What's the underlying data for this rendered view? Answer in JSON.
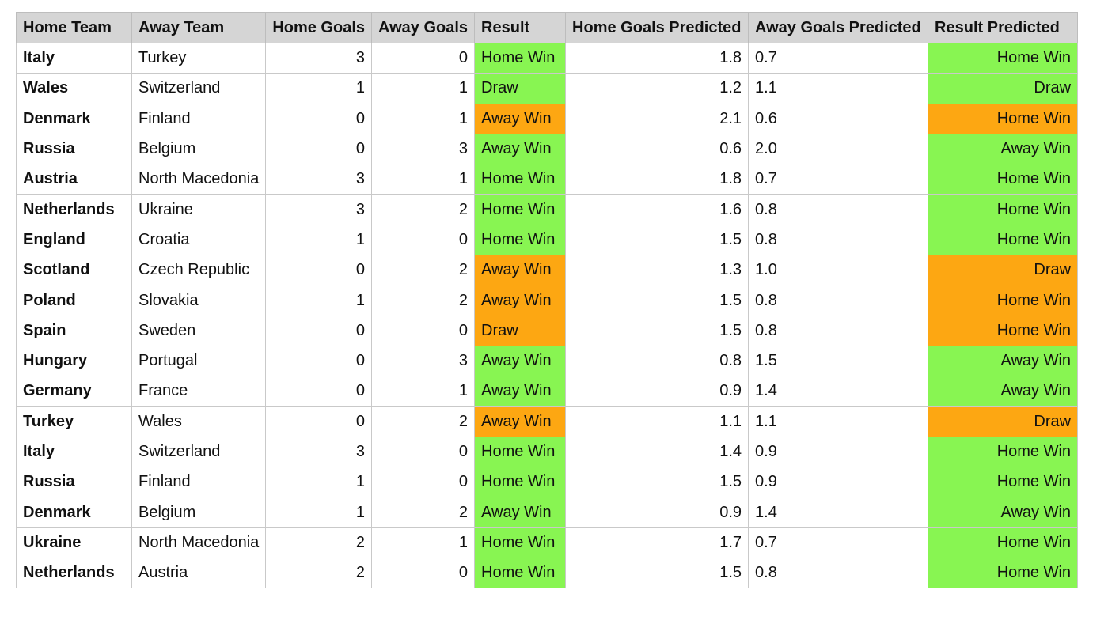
{
  "table": {
    "headers": [
      "Home Team",
      "Away Team",
      "Home Goals",
      "Away Goals",
      "Result",
      "Home Goals Predicted",
      "Away Goals Predicted",
      "Result Predicted"
    ],
    "colors": {
      "correct": "#88f552",
      "incorrect": "#fda712",
      "header": "#d5d5d5"
    },
    "rows": [
      {
        "home": "Italy",
        "away": "Turkey",
        "home_goals": "3",
        "away_goals": "0",
        "result": "Home Win",
        "home_pred": "1.8",
        "away_pred": "0.7",
        "result_pred": "Home Win",
        "correct": true
      },
      {
        "home": "Wales",
        "away": "Switzerland",
        "home_goals": "1",
        "away_goals": "1",
        "result": "Draw",
        "home_pred": "1.2",
        "away_pred": "1.1",
        "result_pred": "Draw",
        "correct": true
      },
      {
        "home": "Denmark",
        "away": "Finland",
        "home_goals": "0",
        "away_goals": "1",
        "result": "Away Win",
        "home_pred": "2.1",
        "away_pred": "0.6",
        "result_pred": "Home Win",
        "correct": false
      },
      {
        "home": "Russia",
        "away": "Belgium",
        "home_goals": "0",
        "away_goals": "3",
        "result": "Away Win",
        "home_pred": "0.6",
        "away_pred": "2.0",
        "result_pred": "Away Win",
        "correct": true
      },
      {
        "home": "Austria",
        "away": "North Macedonia",
        "home_goals": "3",
        "away_goals": "1",
        "result": "Home Win",
        "home_pred": "1.8",
        "away_pred": "0.7",
        "result_pred": "Home Win",
        "correct": true
      },
      {
        "home": "Netherlands",
        "away": "Ukraine",
        "home_goals": "3",
        "away_goals": "2",
        "result": "Home Win",
        "home_pred": "1.6",
        "away_pred": "0.8",
        "result_pred": "Home Win",
        "correct": true
      },
      {
        "home": "England",
        "away": "Croatia",
        "home_goals": "1",
        "away_goals": "0",
        "result": "Home Win",
        "home_pred": "1.5",
        "away_pred": "0.8",
        "result_pred": "Home Win",
        "correct": true
      },
      {
        "home": "Scotland",
        "away": "Czech Republic",
        "home_goals": "0",
        "away_goals": "2",
        "result": "Away Win",
        "home_pred": "1.3",
        "away_pred": "1.0",
        "result_pred": "Draw",
        "correct": false
      },
      {
        "home": "Poland",
        "away": "Slovakia",
        "home_goals": "1",
        "away_goals": "2",
        "result": "Away Win",
        "home_pred": "1.5",
        "away_pred": "0.8",
        "result_pred": "Home Win",
        "correct": false
      },
      {
        "home": "Spain",
        "away": "Sweden",
        "home_goals": "0",
        "away_goals": "0",
        "result": "Draw",
        "home_pred": "1.5",
        "away_pred": "0.8",
        "result_pred": "Home Win",
        "correct": false
      },
      {
        "home": "Hungary",
        "away": "Portugal",
        "home_goals": "0",
        "away_goals": "3",
        "result": "Away Win",
        "home_pred": "0.8",
        "away_pred": "1.5",
        "result_pred": "Away Win",
        "correct": true
      },
      {
        "home": "Germany",
        "away": "France",
        "home_goals": "0",
        "away_goals": "1",
        "result": "Away Win",
        "home_pred": "0.9",
        "away_pred": "1.4",
        "result_pred": "Away Win",
        "correct": true
      },
      {
        "home": "Turkey",
        "away": "Wales",
        "home_goals": "0",
        "away_goals": "2",
        "result": "Away Win",
        "home_pred": "1.1",
        "away_pred": "1.1",
        "result_pred": "Draw",
        "correct": false
      },
      {
        "home": "Italy",
        "away": "Switzerland",
        "home_goals": "3",
        "away_goals": "0",
        "result": "Home Win",
        "home_pred": "1.4",
        "away_pred": "0.9",
        "result_pred": "Home Win",
        "correct": true
      },
      {
        "home": "Russia",
        "away": "Finland",
        "home_goals": "1",
        "away_goals": "0",
        "result": "Home Win",
        "home_pred": "1.5",
        "away_pred": "0.9",
        "result_pred": "Home Win",
        "correct": true
      },
      {
        "home": "Denmark",
        "away": "Belgium",
        "home_goals": "1",
        "away_goals": "2",
        "result": "Away Win",
        "home_pred": "0.9",
        "away_pred": "1.4",
        "result_pred": "Away Win",
        "correct": true
      },
      {
        "home": "Ukraine",
        "away": "North Macedonia",
        "home_goals": "2",
        "away_goals": "1",
        "result": "Home Win",
        "home_pred": "1.7",
        "away_pred": "0.7",
        "result_pred": "Home Win",
        "correct": true
      },
      {
        "home": "Netherlands",
        "away": "Austria",
        "home_goals": "2",
        "away_goals": "0",
        "result": "Home Win",
        "home_pred": "1.5",
        "away_pred": "0.8",
        "result_pred": "Home Win",
        "correct": true
      }
    ]
  }
}
